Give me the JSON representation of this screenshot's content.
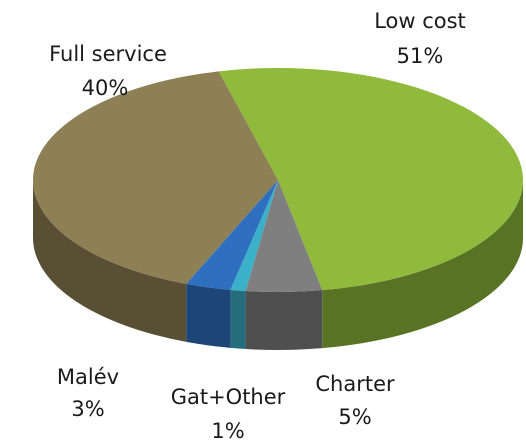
{
  "chart_data": {
    "type": "pie3d",
    "categories": [
      "Low cost",
      "Charter",
      "Gat+Other",
      "Malév",
      "Full service"
    ],
    "values": [
      51,
      5,
      1,
      3,
      40
    ],
    "value_labels": [
      "51%",
      "5%",
      "1%",
      "3%",
      "40%"
    ],
    "colors": [
      "#8fba3c",
      "#7f7f7f",
      "#3bb0c9",
      "#2f6fc0",
      "#8e8055"
    ]
  }
}
